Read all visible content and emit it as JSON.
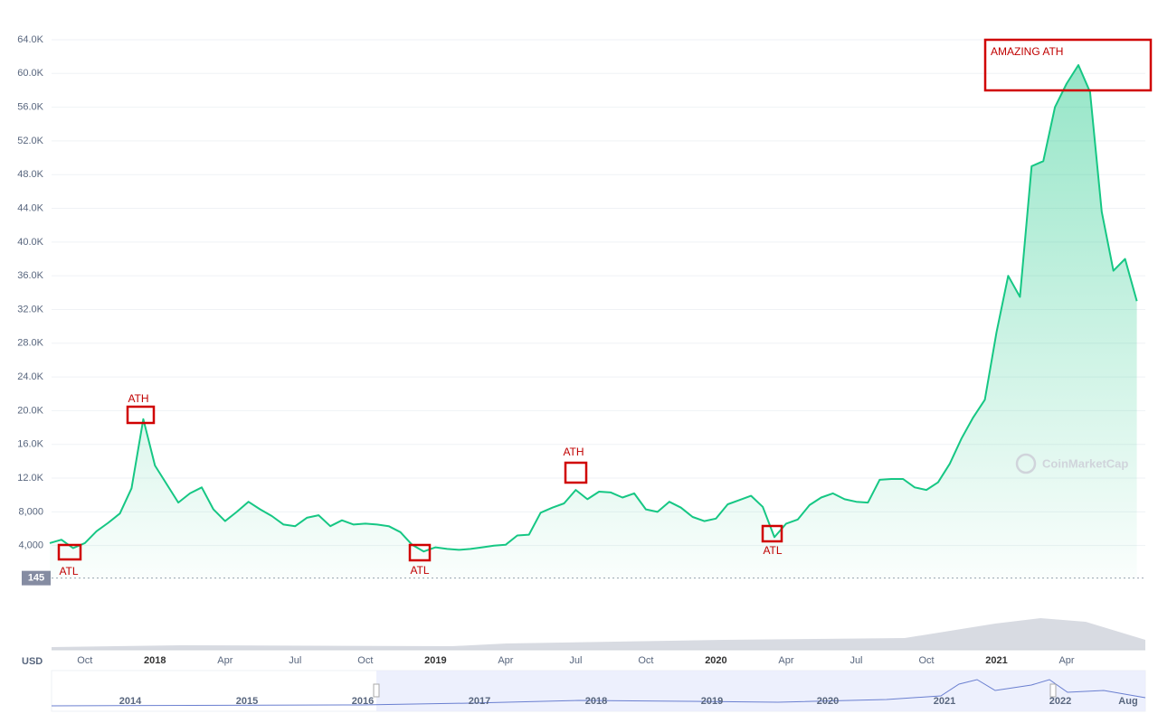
{
  "chart_data": {
    "type": "line",
    "currency": "USD",
    "watermark": "CoinMarketCap",
    "categories": [
      null,
      null,
      null,
      "Oct",
      null,
      null,
      null,
      null,
      null,
      "2018",
      null,
      null,
      null,
      null,
      null,
      "Apr",
      null,
      null,
      null,
      null,
      null,
      "Jul",
      null,
      null,
      null,
      null,
      null,
      "Oct",
      null,
      null,
      null,
      null,
      null,
      "2019",
      null,
      null,
      null,
      null,
      null,
      "Apr",
      null,
      null,
      null,
      null,
      null,
      "Jul",
      null,
      null,
      null,
      null,
      null,
      "Oct",
      null,
      null,
      null,
      null,
      null,
      "2020",
      null,
      null,
      null,
      null,
      null,
      "Apr",
      null,
      null,
      null,
      null,
      null,
      "Jul",
      null,
      null,
      null,
      null,
      null,
      "Oct",
      null,
      null,
      null,
      null,
      null,
      "2021",
      null,
      null,
      null,
      null,
      null,
      "Apr",
      null,
      null,
      null,
      null,
      null,
      null
    ],
    "series": [
      {
        "color": "#16c784",
        "values": [
          4300,
          4700,
          3700,
          4300,
          5700,
          6700,
          7800,
          10800,
          19000,
          13500,
          11300,
          9100,
          10200,
          10900,
          8300,
          6900,
          8000,
          9200,
          8300,
          7500,
          6500,
          6300,
          7300,
          7600,
          6300,
          7000,
          6500,
          6600,
          6500,
          6300,
          5600,
          4100,
          3300,
          3800,
          3600,
          3500,
          3600,
          3800,
          4000,
          4100,
          5200,
          5300,
          7900,
          8500,
          9000,
          10600,
          9500,
          10400,
          10300,
          9700,
          10200,
          8300,
          8000,
          9200,
          8500,
          7400,
          6900,
          7200,
          8900,
          9400,
          9900,
          8600,
          5000,
          6600,
          7100,
          8800,
          9700,
          10200,
          9500,
          9200,
          9100,
          11800,
          11900,
          11900,
          10900,
          10600,
          11500,
          13700,
          16700,
          19200,
          21300,
          29300,
          36000,
          33500,
          49000,
          49600,
          56000,
          58800,
          61000,
          57800,
          43600,
          36600,
          38000,
          33000
        ]
      }
    ],
    "ylim": [
      0,
      67000
    ],
    "yticks": [
      {
        "value": 4000,
        "label": "4,000"
      },
      {
        "value": 8000,
        "label": "8,000"
      },
      {
        "value": 12000,
        "label": "12.0K"
      },
      {
        "value": 16000,
        "label": "16.0K"
      },
      {
        "value": 20000,
        "label": "20.0K"
      },
      {
        "value": 24000,
        "label": "24.0K"
      },
      {
        "value": 28000,
        "label": "28.0K"
      },
      {
        "value": 32000,
        "label": "32.0K"
      },
      {
        "value": 36000,
        "label": "36.0K"
      },
      {
        "value": 40000,
        "label": "40.0K"
      },
      {
        "value": 44000,
        "label": "44.0K"
      },
      {
        "value": 48000,
        "label": "48.0K"
      },
      {
        "value": 52000,
        "label": "52.0K"
      },
      {
        "value": 56000,
        "label": "56.0K"
      },
      {
        "value": 60000,
        "label": "60.0K"
      },
      {
        "value": 64000,
        "label": "64.0K"
      }
    ],
    "price_marker": 145,
    "grid": true,
    "annotations": [
      "ATL",
      "ATH",
      "ATL",
      "ATH",
      "ATL",
      "AMAZING ATH"
    ],
    "navigator_labels": [
      "2014",
      "2015",
      "2016",
      "2017",
      "2018",
      "2019",
      "2020",
      "2021",
      "2022",
      "Aug"
    ]
  }
}
